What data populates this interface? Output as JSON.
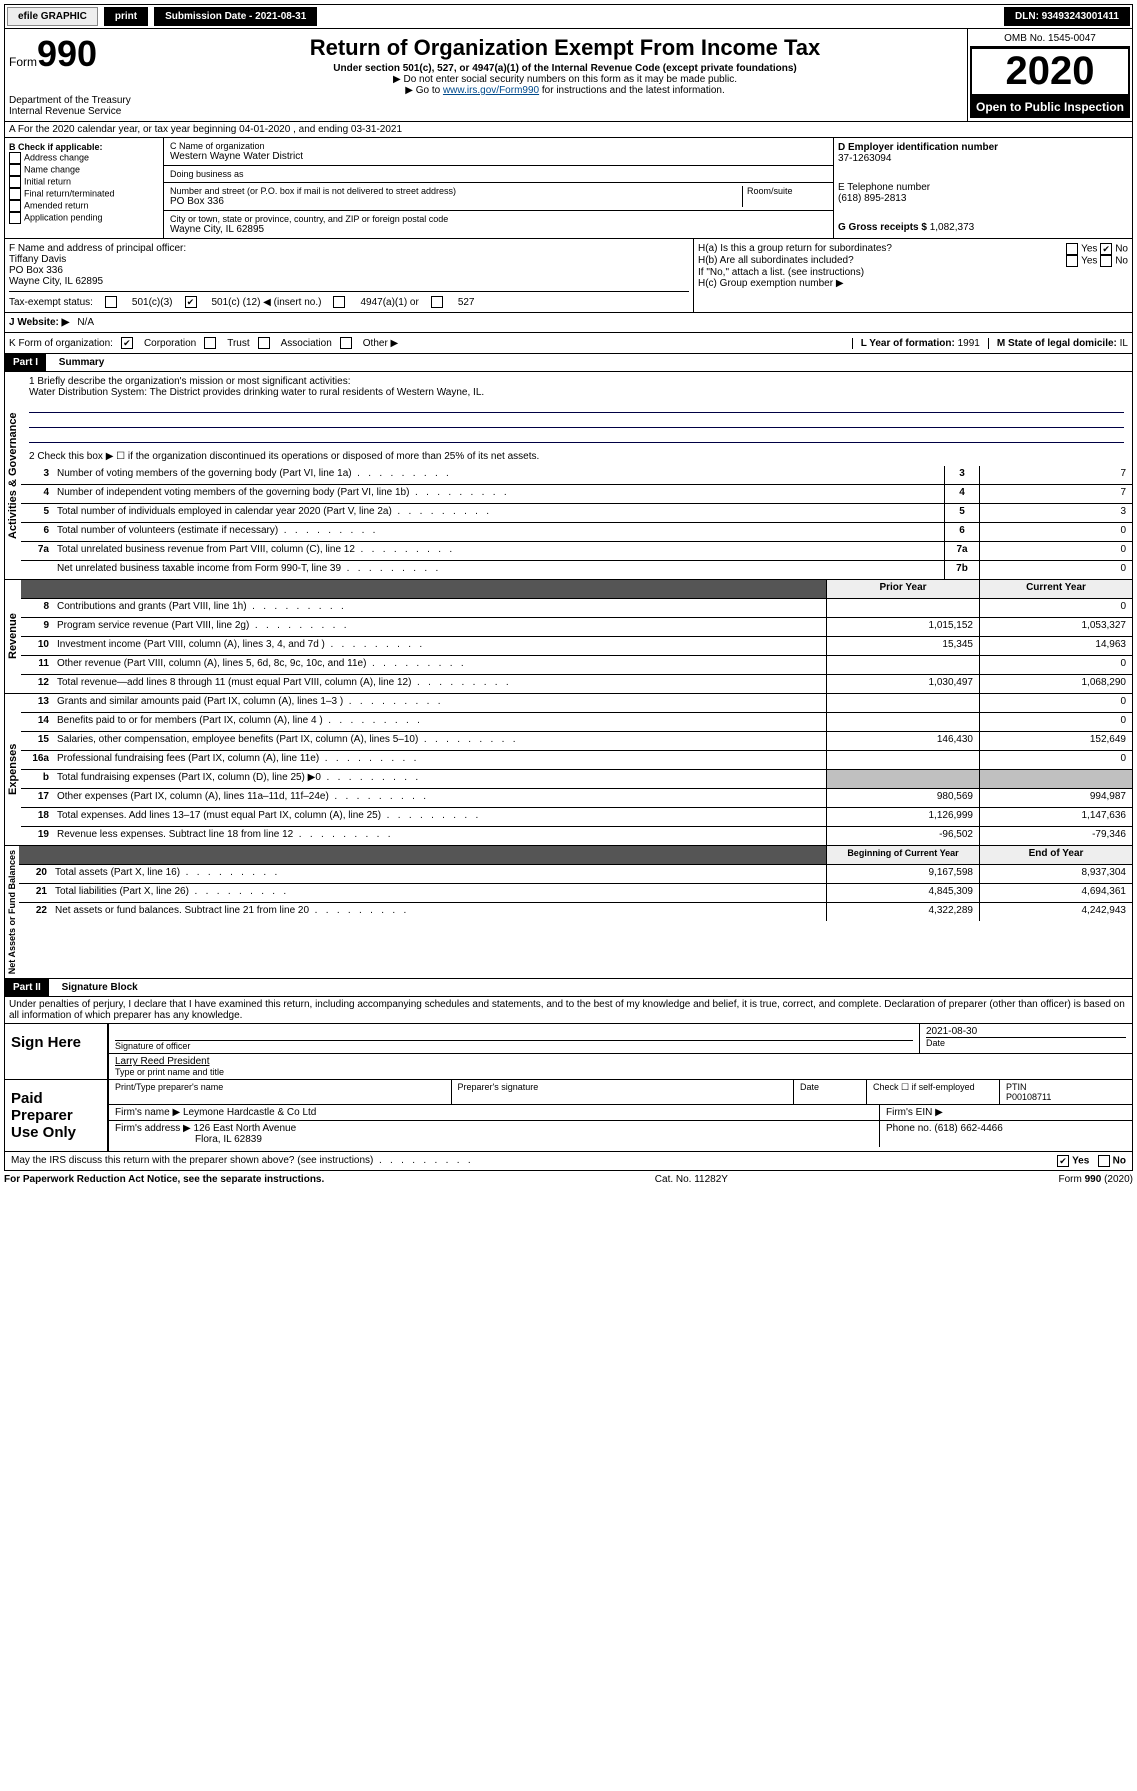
{
  "topbar": {
    "efile": "efile GRAPHIC",
    "print": "print",
    "sub_label": "Submission Date - 2021-08-31",
    "dln": "DLN: 93493243001411"
  },
  "header": {
    "form_word": "Form",
    "form_num": "990",
    "dept": "Department of the Treasury\nInternal Revenue Service",
    "title": "Return of Organization Exempt From Income Tax",
    "sub1": "Under section 501(c), 527, or 4947(a)(1) of the Internal Revenue Code (except private foundations)",
    "sub2": "▶ Do not enter social security numbers on this form as it may be made public.",
    "sub3_pre": "▶ Go to ",
    "sub3_link": "www.irs.gov/Form990",
    "sub3_post": " for instructions and the latest information.",
    "omb": "OMB No. 1545-0047",
    "year": "2020",
    "open": "Open to Public Inspection"
  },
  "section_a": "A For the 2020 calendar year, or tax year beginning 04-01-2020   , and ending 03-31-2021",
  "col_b": {
    "label": "B Check if applicable:",
    "opts": [
      "Address change",
      "Name change",
      "Initial return",
      "Final return/terminated",
      "Amended return",
      "Application pending"
    ]
  },
  "col_c": {
    "name_label": "C Name of organization",
    "name": "Western Wayne Water District",
    "dba_label": "Doing business as",
    "dba": "",
    "addr_label": "Number and street (or P.O. box if mail is not delivered to street address)",
    "room_label": "Room/suite",
    "addr": "PO Box 336",
    "city_label": "City or town, state or province, country, and ZIP or foreign postal code",
    "city": "Wayne City, IL  62895"
  },
  "col_d": {
    "ein_label": "D Employer identification number",
    "ein": "37-1263094",
    "tel_label": "E Telephone number",
    "tel": "(618) 895-2813",
    "gross_label": "G Gross receipts $",
    "gross": "1,082,373"
  },
  "officer": {
    "label": "F  Name and address of principal officer:",
    "name": "Tiffany Davis",
    "addr1": "PO Box 336",
    "addr2": "Wayne City, IL  62895"
  },
  "h": {
    "a_label": "H(a)  Is this a group return for subordinates?",
    "b_label": "H(b)  Are all subordinates included?",
    "note": "If \"No,\" attach a list. (see instructions)",
    "c_label": "H(c)  Group exemption number ▶"
  },
  "tax_status": {
    "label": "Tax-exempt status:",
    "opt1": "501(c)(3)",
    "opt2_pre": "501(c) (",
    "opt2_val": "12",
    "opt2_post": ") ◀ (insert no.)",
    "opt3": "4947(a)(1) or",
    "opt4": "527"
  },
  "website": {
    "label": "J    Website: ▶",
    "val": "N/A"
  },
  "k": {
    "label": "K Form of organization:",
    "opts": [
      "Corporation",
      "Trust",
      "Association",
      "Other ▶"
    ],
    "l_label": "L Year of formation:",
    "l_val": "1991",
    "m_label": "M State of legal domicile:",
    "m_val": "IL"
  },
  "part1": {
    "title": "Part I",
    "sub": "Summary",
    "q1_label": "1  Briefly describe the organization's mission or most significant activities:",
    "q1_val": "Water Distribution System: The District provides drinking water to rural residents of Western Wayne, IL.",
    "q2": "2   Check this box ▶ ☐  if the organization discontinued its operations or disposed of more than 25% of its net assets.",
    "lines_top": [
      {
        "n": "3",
        "d": "Number of voting members of the governing body (Part VI, line 1a)",
        "box": "3",
        "v": "7"
      },
      {
        "n": "4",
        "d": "Number of independent voting members of the governing body (Part VI, line 1b)",
        "box": "4",
        "v": "7"
      },
      {
        "n": "5",
        "d": "Total number of individuals employed in calendar year 2020 (Part V, line 2a)",
        "box": "5",
        "v": "3"
      },
      {
        "n": "6",
        "d": "Total number of volunteers (estimate if necessary)",
        "box": "6",
        "v": "0"
      },
      {
        "n": "7a",
        "d": "Total unrelated business revenue from Part VIII, column (C), line 12",
        "box": "7a",
        "v": "0"
      },
      {
        "n": "",
        "d": "Net unrelated business taxable income from Form 990-T, line 39",
        "box": "7b",
        "v": "0"
      }
    ],
    "col_hdr_prior": "Prior Year",
    "col_hdr_curr": "Current Year",
    "revenue": [
      {
        "n": "8",
        "d": "Contributions and grants (Part VIII, line 1h)",
        "p": "",
        "c": "0"
      },
      {
        "n": "9",
        "d": "Program service revenue (Part VIII, line 2g)",
        "p": "1,015,152",
        "c": "1,053,327"
      },
      {
        "n": "10",
        "d": "Investment income (Part VIII, column (A), lines 3, 4, and 7d )",
        "p": "15,345",
        "c": "14,963"
      },
      {
        "n": "11",
        "d": "Other revenue (Part VIII, column (A), lines 5, 6d, 8c, 9c, 10c, and 11e)",
        "p": "",
        "c": "0"
      },
      {
        "n": "12",
        "d": "Total revenue—add lines 8 through 11 (must equal Part VIII, column (A), line 12)",
        "p": "1,030,497",
        "c": "1,068,290"
      }
    ],
    "expenses": [
      {
        "n": "13",
        "d": "Grants and similar amounts paid (Part IX, column (A), lines 1–3 )",
        "p": "",
        "c": "0"
      },
      {
        "n": "14",
        "d": "Benefits paid to or for members (Part IX, column (A), line 4 )",
        "p": "",
        "c": "0"
      },
      {
        "n": "15",
        "d": "Salaries, other compensation, employee benefits (Part IX, column (A), lines 5–10)",
        "p": "146,430",
        "c": "152,649"
      },
      {
        "n": "16a",
        "d": "Professional fundraising fees (Part IX, column (A), line 11e)",
        "p": "",
        "c": "0"
      },
      {
        "n": "b",
        "d": "Total fundraising expenses (Part IX, column (D), line 25) ▶0",
        "p": "shaded",
        "c": "shaded"
      },
      {
        "n": "17",
        "d": "Other expenses (Part IX, column (A), lines 11a–11d, 11f–24e)",
        "p": "980,569",
        "c": "994,987"
      },
      {
        "n": "18",
        "d": "Total expenses. Add lines 13–17 (must equal Part IX, column (A), line 25)",
        "p": "1,126,999",
        "c": "1,147,636"
      },
      {
        "n": "19",
        "d": "Revenue less expenses. Subtract line 18 from line 12",
        "p": "-96,502",
        "c": "-79,346"
      }
    ],
    "col_hdr_beg": "Beginning of Current Year",
    "col_hdr_end": "End of Year",
    "netassets": [
      {
        "n": "20",
        "d": "Total assets (Part X, line 16)",
        "p": "9,167,598",
        "c": "8,937,304"
      },
      {
        "n": "21",
        "d": "Total liabilities (Part X, line 26)",
        "p": "4,845,309",
        "c": "4,694,361"
      },
      {
        "n": "22",
        "d": "Net assets or fund balances. Subtract line 21 from line 20",
        "p": "4,322,289",
        "c": "4,242,943"
      }
    ],
    "side_labels": {
      "gov": "Activities & Governance",
      "rev": "Revenue",
      "exp": "Expenses",
      "net": "Net Assets or Fund Balances"
    }
  },
  "part2": {
    "title": "Part II",
    "sub": "Signature Block",
    "perjury": "Under penalties of perjury, I declare that I have examined this return, including accompanying schedules and statements, and to the best of my knowledge and belief, it is true, correct, and complete. Declaration of preparer (other than officer) is based on all information of which preparer has any knowledge.",
    "sign_here": "Sign Here",
    "sig_officer": "Signature of officer",
    "date_val": "2021-08-30",
    "date_label": "Date",
    "officer_name": "Larry Reed  President",
    "type_label": "Type or print name and title",
    "paid": "Paid Preparer Use Only",
    "prep_name_label": "Print/Type preparer's name",
    "prep_sig_label": "Preparer's signature",
    "prep_date_label": "Date",
    "self_emp": "Check ☐ if self-employed",
    "ptin_label": "PTIN",
    "ptin": "P00108711",
    "firm_name_label": "Firm's name    ▶",
    "firm_name": "Leymone Hardcastle & Co Ltd",
    "firm_ein_label": "Firm's EIN ▶",
    "firm_addr_label": "Firm's address ▶",
    "firm_addr": "126 East North Avenue",
    "firm_city": "Flora, IL  62839",
    "phone_label": "Phone no.",
    "phone": "(618) 662-4466",
    "discuss": "May the IRS discuss this return with the preparer shown above? (see instructions)"
  },
  "footer": {
    "left": "For Paperwork Reduction Act Notice, see the separate instructions.",
    "mid": "Cat. No. 11282Y",
    "right": "Form 990 (2020)"
  }
}
